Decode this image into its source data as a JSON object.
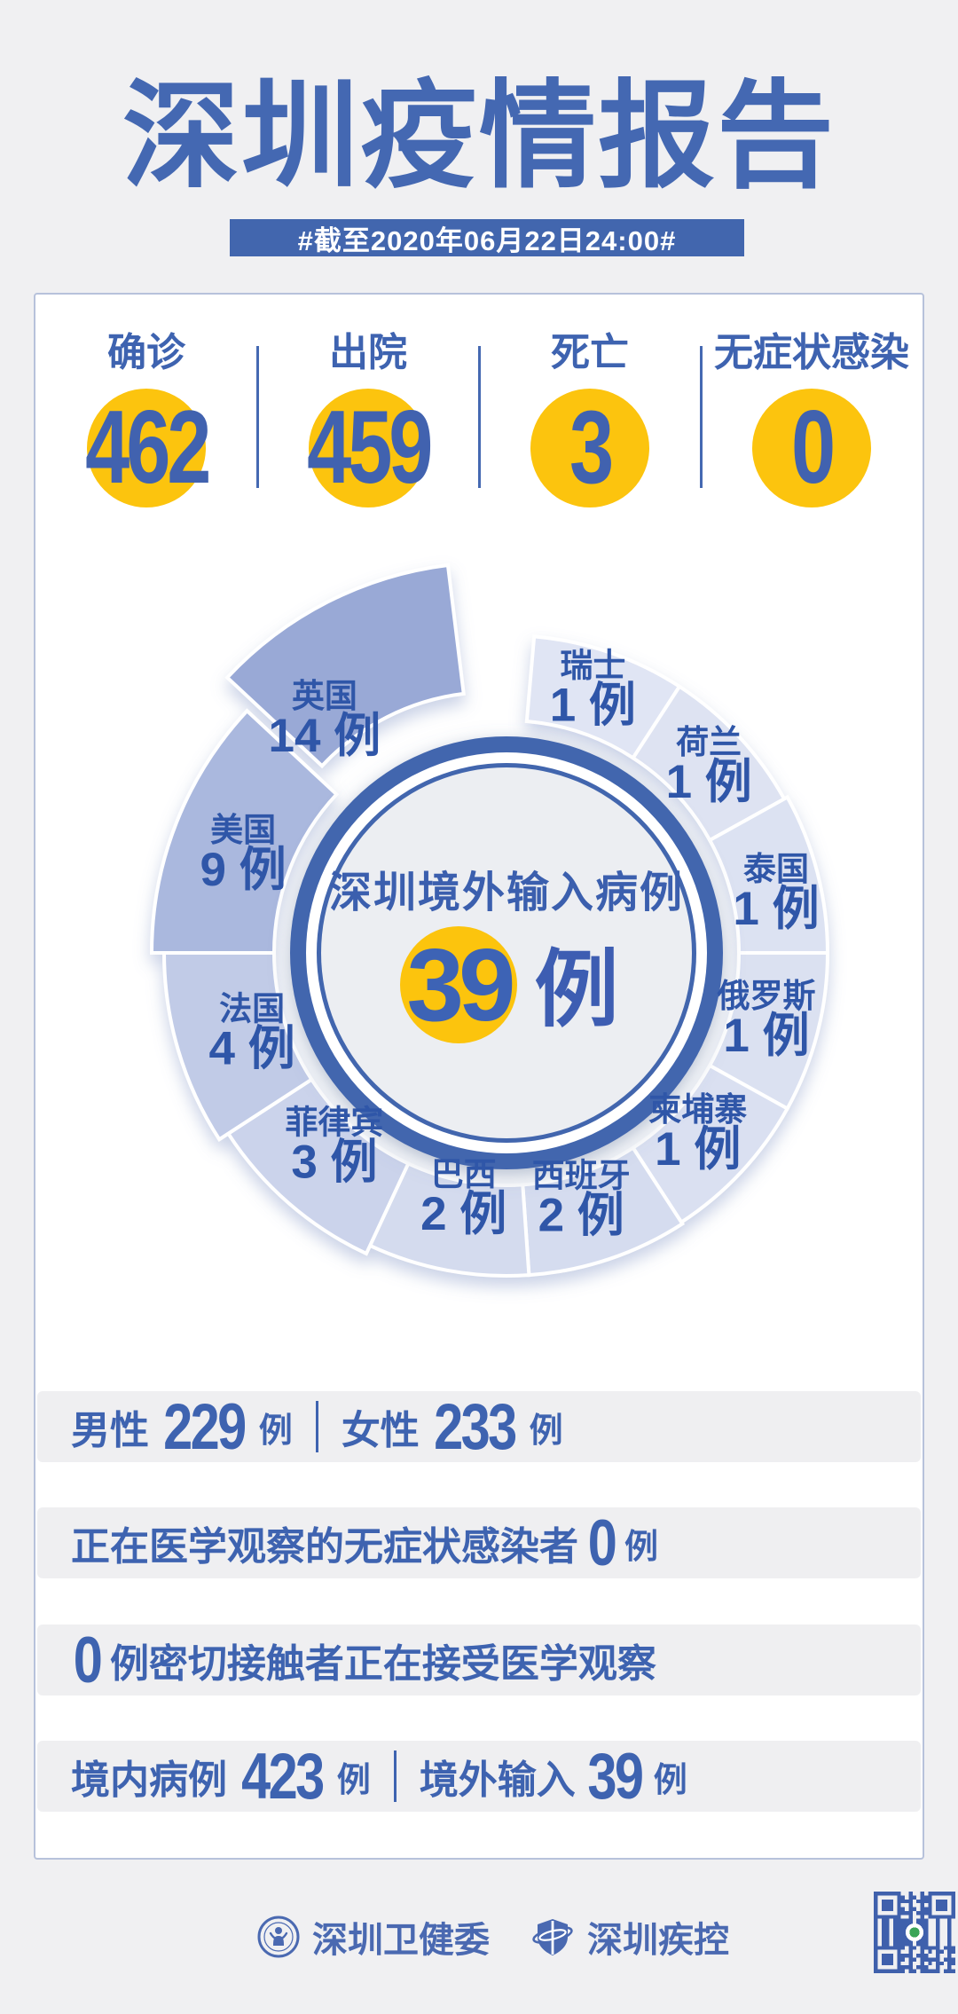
{
  "page": {
    "title": "深圳疫情报告",
    "banner_text": "#截至2020年06月22日24:00#",
    "background_color": "#f0f0f2",
    "accent_color": "#4266ae",
    "yellow_color": "#fcc40e"
  },
  "stats": {
    "items": [
      {
        "label": "确诊",
        "value": "462"
      },
      {
        "label": "出院",
        "value": "459"
      },
      {
        "label": "死亡",
        "value": "3"
      },
      {
        "label": "无症状感染",
        "value": "0"
      }
    ]
  },
  "chart_data": {
    "type": "pie",
    "title": "深圳境外输入病例",
    "total_label": "39",
    "total_unit": "例",
    "legend_position": "on-slice",
    "center": [
      571,
      1074
    ],
    "inner_radius": 262,
    "series": [
      {
        "name": "瑞士",
        "value": 1,
        "unit": "例",
        "color": "#e0e5f4",
        "r": 358,
        "start": 5,
        "end": 33,
        "label_angle": 18,
        "label_r": 315
      },
      {
        "name": "荷兰",
        "value": 1,
        "unit": "例",
        "color": "#dee3f2",
        "r": 358,
        "start": 33,
        "end": 61,
        "label_angle": 47,
        "label_r": 312
      },
      {
        "name": "泰国",
        "value": 1,
        "unit": "例",
        "color": "#dce2f2",
        "r": 362,
        "start": 61,
        "end": 90,
        "label_angle": 77,
        "label_r": 312
      },
      {
        "name": "俄罗斯",
        "value": 1,
        "unit": "例",
        "color": "#dbe1f1",
        "r": 362,
        "start": 90,
        "end": 119,
        "label_angle": 104,
        "label_r": 302
      },
      {
        "name": "柬埔寨",
        "value": 1,
        "unit": "例",
        "color": "#dae0f1",
        "r": 362,
        "start": 119,
        "end": 147,
        "label_angle": 133,
        "label_r": 295
      },
      {
        "name": "西班牙",
        "value": 2,
        "unit": "例",
        "color": "#d5dcef",
        "r": 364,
        "start": 147,
        "end": 176,
        "label_angle": 163,
        "label_r": 288
      },
      {
        "name": "巴西",
        "value": 2,
        "unit": "例",
        "color": "#d4dbee",
        "r": 364,
        "start": 176,
        "end": 205,
        "label_angle": 190,
        "label_r": 278
      },
      {
        "name": "菲律宾",
        "value": 3,
        "unit": "例",
        "color": "#cbd3eb",
        "r": 374,
        "start": 205,
        "end": 237,
        "label_angle": 222,
        "label_r": 290
      },
      {
        "name": "法国",
        "value": 4,
        "unit": "例",
        "color": "#c1cbe7",
        "r": 386,
        "start": 237,
        "end": 270,
        "label_angle": 253,
        "label_r": 300
      },
      {
        "name": "美国",
        "value": 9,
        "unit": "例",
        "color": "#aab8de",
        "r": 400,
        "start": 270,
        "end": 313,
        "label_angle": 291,
        "label_r": 318
      },
      {
        "name": "英国",
        "value": 14,
        "unit": "例",
        "color": "#99a9d6",
        "r": 408,
        "start": 313,
        "end": 353,
        "label_angle": 321,
        "label_r": 300,
        "explode": 36
      }
    ]
  },
  "bars": {
    "gender": {
      "label1": "男性",
      "num1": "229",
      "unit1": "例",
      "label2": "女性",
      "num2": "233",
      "unit2": "例"
    },
    "observation": {
      "label": "正在医学观察的无症状感染者",
      "num": "0",
      "unit": "例"
    },
    "close_contacts": {
      "num": "0",
      "label": "例密切接触者正在接受医学观察"
    },
    "origin": {
      "label1": "境内病例",
      "num1": "423",
      "unit1": "例",
      "label2": "境外输入",
      "num2": "39",
      "unit2": "例"
    }
  },
  "footer": {
    "org1": "深圳卫健委",
    "org2": "深圳疾控"
  }
}
